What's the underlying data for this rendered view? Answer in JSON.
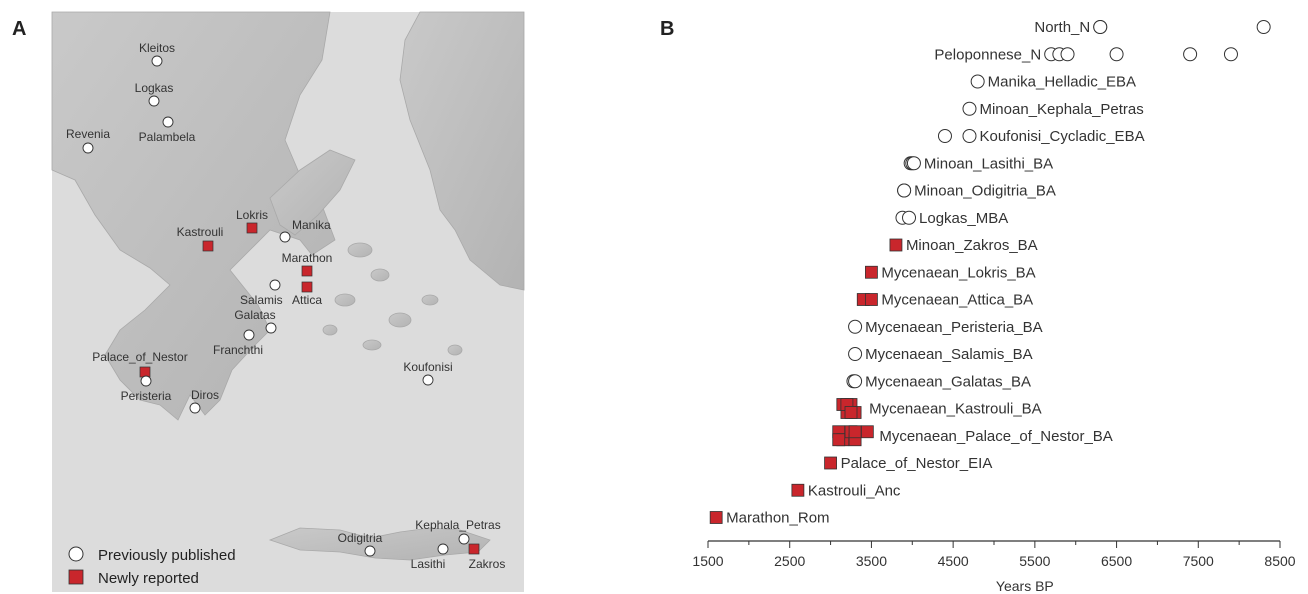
{
  "panel_a": {
    "letter": "A",
    "sites": [
      {
        "name": "Kleitos",
        "kind": "previous"
      },
      {
        "name": "Logkas",
        "kind": "previous"
      },
      {
        "name": "Palambela",
        "kind": "previous"
      },
      {
        "name": "Revenia",
        "kind": "previous"
      },
      {
        "name": "Lokris",
        "kind": "new"
      },
      {
        "name": "Kastrouli",
        "kind": "new"
      },
      {
        "name": "Manika",
        "kind": "previous"
      },
      {
        "name": "Marathon",
        "kind": "new"
      },
      {
        "name": "Attica",
        "kind": "new"
      },
      {
        "name": "Salamis",
        "kind": "previous"
      },
      {
        "name": "Galatas",
        "kind": "previous"
      },
      {
        "name": "Franchthi",
        "kind": "previous"
      },
      {
        "name": "Palace_of_Nestor",
        "kind": "new"
      },
      {
        "name": "Peristeria",
        "kind": "previous"
      },
      {
        "name": "Diros",
        "kind": "previous"
      },
      {
        "name": "Koufonisi",
        "kind": "previous"
      },
      {
        "name": "Odigitria",
        "kind": "previous"
      },
      {
        "name": "Kephala_Petras",
        "kind": "previous"
      },
      {
        "name": "Lasithi",
        "kind": "previous"
      },
      {
        "name": "Zakros",
        "kind": "new"
      }
    ],
    "legend": {
      "previous": "Previously published",
      "new": "Newly reported"
    },
    "colors": {
      "new": "#c9262c",
      "previous": "#ffffff",
      "sea": "#dadada",
      "land": "#bdbdbd"
    }
  },
  "chart_data": {
    "type": "scatter",
    "letter": "B",
    "xlabel": "Years BP",
    "xlim": [
      1500,
      8500
    ],
    "xticks": [
      1500,
      2500,
      3500,
      4500,
      5500,
      6500,
      7500,
      8500
    ],
    "groups": [
      {
        "label": "North_N",
        "kind": "previous",
        "values": [
          6300,
          6300,
          8300
        ]
      },
      {
        "label": "Peloponnese_N",
        "kind": "previous",
        "values": [
          5700,
          5800,
          5900,
          6500,
          7400,
          7900
        ]
      },
      {
        "label": "Manika_Helladic_EBA",
        "kind": "previous",
        "values": [
          4800
        ]
      },
      {
        "label": "Minoan_Kephala_Petras",
        "kind": "previous",
        "values": [
          4700
        ]
      },
      {
        "label": "Koufonisi_Cycladic_EBA",
        "kind": "previous",
        "values": [
          4400,
          4700
        ]
      },
      {
        "label": "Minoan_Lasithi_BA",
        "kind": "previous",
        "values": [
          3980,
          4000,
          4020
        ]
      },
      {
        "label": "Minoan_Odigitria_BA",
        "kind": "previous",
        "values": [
          3900,
          3900
        ]
      },
      {
        "label": "Logkas_MBA",
        "kind": "previous",
        "values": [
          3880,
          3960
        ]
      },
      {
        "label": "Minoan_Zakros_BA",
        "kind": "new",
        "values": [
          3800
        ]
      },
      {
        "label": "Mycenaean_Lokris_BA",
        "kind": "new",
        "values": [
          3500
        ]
      },
      {
        "label": "Mycenaean_Attica_BA",
        "kind": "new",
        "values": [
          3400,
          3500
        ]
      },
      {
        "label": "Mycenaean_Peristeria_BA",
        "kind": "previous",
        "values": [
          3300
        ]
      },
      {
        "label": "Mycenaean_Salamis_BA",
        "kind": "previous",
        "values": [
          3300
        ]
      },
      {
        "label": "Mycenaean_Galatas_BA",
        "kind": "previous",
        "values": [
          3280,
          3300
        ]
      },
      {
        "label": "Mycenaean_Kastrouli_BA",
        "kind": "new",
        "values": [
          3150,
          3200,
          3250,
          3300,
          3200,
          3250
        ]
      },
      {
        "label": "Mycenaean_Palace_of_Nestor_BA",
        "kind": "new",
        "values": [
          3100,
          3150,
          3250,
          3300,
          3450,
          3100,
          3300
        ]
      },
      {
        "label": "Palace_of_Nestor_EIA",
        "kind": "new",
        "values": [
          3000
        ]
      },
      {
        "label": "Kastrouli_Anc",
        "kind": "new",
        "values": [
          2600
        ]
      },
      {
        "label": "Marathon_Rom",
        "kind": "new",
        "values": [
          1600
        ]
      }
    ]
  }
}
